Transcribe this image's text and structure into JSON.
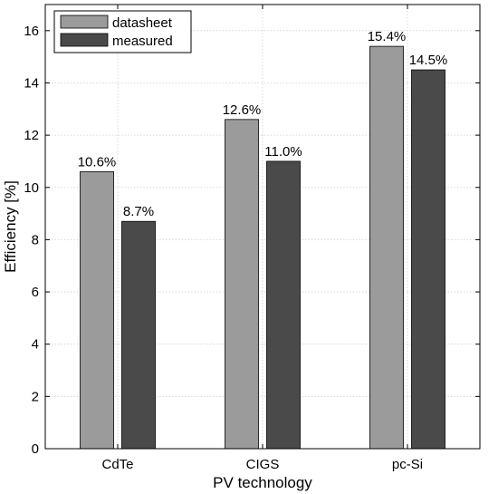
{
  "chart_data": {
    "type": "bar",
    "xlabel": "PV technology",
    "ylabel": "Efficiency [%]",
    "categories": [
      "CdTe",
      "CIGS",
      "pc-Si"
    ],
    "series": [
      {
        "name": "datasheet",
        "values": [
          10.6,
          12.6,
          15.4
        ],
        "color": "#9b9b9b",
        "value_labels": [
          "10.6%",
          "12.6%",
          "15.4%"
        ]
      },
      {
        "name": "measured",
        "values": [
          8.7,
          11.0,
          14.5
        ],
        "color": "#4a4a4a",
        "value_labels": [
          "8.7%",
          "11.0%",
          "14.5%"
        ]
      }
    ],
    "ylim": [
      0,
      17
    ],
    "yticks": [
      0,
      2,
      4,
      6,
      8,
      10,
      12,
      14,
      16
    ],
    "ytick_labels": [
      "0",
      "2",
      "4",
      "6",
      "8",
      "10",
      "12",
      "14",
      "16"
    ],
    "grid": true,
    "legend_position": "top-left"
  }
}
